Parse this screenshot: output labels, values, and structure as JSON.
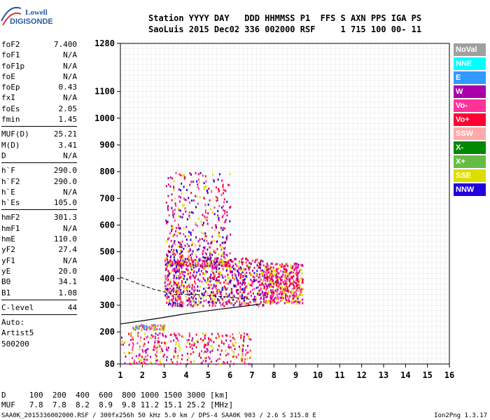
{
  "logo": {
    "top": "Lowell",
    "bottom": "DIGISONDE"
  },
  "header": {
    "line1": "Station YYYY DAY   DDD HHMMSS P1  FFS S AXN PPS IGA PS",
    "line2": "SaoLuis 2015 Dec02 336 002000 RSF     1 715 100 00- 11"
  },
  "params": [
    {
      "k": "foF2",
      "v": "7.400"
    },
    {
      "k": "foF1",
      "v": "N/A"
    },
    {
      "k": "foF1p",
      "v": "N/A"
    },
    {
      "k": "foE",
      "v": "N/A"
    },
    {
      "k": "foEp",
      "v": "0.43"
    },
    {
      "k": "fxI",
      "v": "N/A"
    },
    {
      "k": "foEs",
      "v": "2.05"
    },
    {
      "k": "fmin",
      "v": "1.45"
    },
    {
      "sep": true
    },
    {
      "k": "MUF(D)",
      "v": "25.21"
    },
    {
      "k": "M(D)",
      "v": "3.41"
    },
    {
      "k": "D",
      "v": "N/A"
    },
    {
      "sep": true
    },
    {
      "k": "h`F",
      "v": "290.0"
    },
    {
      "k": "h`F2",
      "v": "290.0"
    },
    {
      "k": "h`E",
      "v": "N/A"
    },
    {
      "k": "h`Es",
      "v": "105.0"
    },
    {
      "sep": true
    },
    {
      "k": "hmF2",
      "v": "301.3"
    },
    {
      "k": "hmF1",
      "v": "N/A"
    },
    {
      "k": "hmE",
      "v": "110.0"
    },
    {
      "k": "yF2",
      "v": "27.4"
    },
    {
      "k": "yF1",
      "v": "N/A"
    },
    {
      "k": "yE",
      "v": "20.0"
    },
    {
      "k": "B0",
      "v": "34.1"
    },
    {
      "k": "B1",
      "v": "1.08"
    },
    {
      "sep": true
    },
    {
      "k": "C-level",
      "v": "44"
    },
    {
      "sep": true
    },
    {
      "k": "Auto:",
      "v": ""
    },
    {
      "k": "Artist5",
      "v": ""
    },
    {
      "k": "500200",
      "v": ""
    }
  ],
  "legend": [
    {
      "label": "NoVal",
      "color": "#a0a0a0"
    },
    {
      "label": "NNE",
      "color": "#00ffff"
    },
    {
      "label": "E",
      "color": "#3399ff"
    },
    {
      "label": "W",
      "color": "#aa00aa"
    },
    {
      "label": "Vo-",
      "color": "#ff3399"
    },
    {
      "label": "Vo+",
      "color": "#ff0033"
    },
    {
      "label": "SSW",
      "color": "#ffaaaa"
    },
    {
      "label": "X-",
      "color": "#008800"
    },
    {
      "label": "X+",
      "color": "#66bb44"
    },
    {
      "label": "SSE",
      "color": "#dddd00"
    },
    {
      "label": "NNW",
      "color": "#2200dd"
    }
  ],
  "footer": {
    "line1": "D     100  200  400  600  800 1000 1500 3000 [km]",
    "line2": "MUF   7.8  7.8  8.2  8.9  9.8 11.2 15.1 25.2 [MHz]",
    "file": "SAA0K_2015336002000.RSF / 300fx256h 50 kHz 5.0 km / DPS-4 SAA0K 903 / 2.6 S 315.8 E",
    "version": "Ion2Png 1.3.17"
  },
  "chart_data": {
    "type": "scatter",
    "xlabel": "",
    "ylabel": "",
    "xlim": [
      1,
      16
    ],
    "ylim": [
      80,
      1280
    ],
    "x_ticks": [
      1,
      2,
      3,
      4,
      5,
      6,
      7,
      8,
      9,
      10,
      11,
      12,
      13,
      14,
      15,
      16
    ],
    "y_ticks": [
      80,
      200,
      300,
      400,
      500,
      600,
      700,
      800,
      900,
      1000,
      1100,
      1280
    ],
    "grid": true,
    "clusters": [
      {
        "name": "F-trace",
        "x": [
          3.0,
          7.5
        ],
        "y": [
          300,
          480
        ],
        "colors": [
          "#ff0033",
          "#ff3399",
          "#aa00aa",
          "#dddd00",
          "#2200dd"
        ]
      },
      {
        "name": "F-trace-2",
        "x": [
          7.5,
          9.3
        ],
        "y": [
          310,
          460
        ],
        "colors": [
          "#ff0033",
          "#ff3399",
          "#aa00aa",
          "#dddd00"
        ]
      },
      {
        "name": "spread-F",
        "x": [
          3.0,
          6.0
        ],
        "y": [
          450,
          800
        ],
        "colors": [
          "#aa00aa",
          "#ff3399",
          "#dddd00",
          "#2200dd",
          "#ff0033"
        ]
      },
      {
        "name": "Es",
        "x": [
          1.0,
          7.0
        ],
        "y": [
          82,
          200
        ],
        "colors": [
          "#dddd00",
          "#ff3399",
          "#aa00aa",
          "#ff0033"
        ]
      },
      {
        "name": "low-F",
        "x": [
          1.5,
          3.0
        ],
        "y": [
          210,
          230
        ],
        "colors": [
          "#3399ff",
          "#ff3399",
          "#dddd00"
        ]
      }
    ],
    "profile_curve": {
      "x": [
        1.0,
        2.5,
        4.0,
        5.5,
        7.0,
        7.4
      ],
      "y": [
        230,
        248,
        268,
        285,
        300,
        305
      ]
    },
    "dashed_curve": {
      "x": [
        1.0,
        2.5,
        3.5,
        4.5,
        6.0,
        7.2
      ],
      "y": [
        405,
        360,
        340,
        340,
        330,
        320
      ]
    }
  }
}
